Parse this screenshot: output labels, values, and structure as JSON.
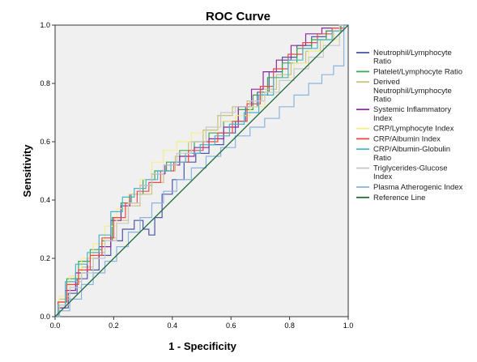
{
  "chart_data": {
    "type": "line",
    "title": "ROC Curve",
    "xlabel": "1 - Specificity",
    "ylabel": "Sensitivity",
    "xlim": [
      0.0,
      1.0
    ],
    "ylim": [
      0.0,
      1.0
    ],
    "x_ticks": [
      "0.0",
      "0.2",
      "0.4",
      "0.6",
      "0.8",
      "1.0"
    ],
    "y_ticks": [
      "0.0",
      "0.2",
      "0.4",
      "0.6",
      "0.8",
      "1.0"
    ],
    "grid": false,
    "background_color": "#f0f0f0",
    "legend_position": "right",
    "series": [
      {
        "name": "Neutrophil/Lymphocyte Ratio",
        "color": "#4a57a8",
        "points": [
          [
            0,
            0
          ],
          [
            0.03,
            0.03
          ],
          [
            0.06,
            0.08
          ],
          [
            0.09,
            0.13
          ],
          [
            0.13,
            0.16
          ],
          [
            0.17,
            0.21
          ],
          [
            0.21,
            0.26
          ],
          [
            0.25,
            0.3
          ],
          [
            0.29,
            0.33
          ],
          [
            0.31,
            0.3
          ],
          [
            0.33,
            0.28
          ],
          [
            0.35,
            0.34
          ],
          [
            0.38,
            0.42
          ],
          [
            0.42,
            0.47
          ],
          [
            0.46,
            0.53
          ],
          [
            0.5,
            0.56
          ],
          [
            0.55,
            0.59
          ],
          [
            0.6,
            0.63
          ],
          [
            0.63,
            0.67
          ],
          [
            0.67,
            0.72
          ],
          [
            0.71,
            0.77
          ],
          [
            0.75,
            0.84
          ],
          [
            0.8,
            0.89
          ],
          [
            0.85,
            0.93
          ],
          [
            0.9,
            0.96
          ],
          [
            0.95,
            0.98
          ],
          [
            1,
            1
          ]
        ]
      },
      {
        "name": "Platelet/Lymphocyte Ratio",
        "color": "#3aa84a",
        "points": [
          [
            0,
            0
          ],
          [
            0.02,
            0.05
          ],
          [
            0.06,
            0.13
          ],
          [
            0.1,
            0.19
          ],
          [
            0.14,
            0.23
          ],
          [
            0.18,
            0.26
          ],
          [
            0.21,
            0.34
          ],
          [
            0.24,
            0.39
          ],
          [
            0.28,
            0.42
          ],
          [
            0.32,
            0.47
          ],
          [
            0.36,
            0.5
          ],
          [
            0.4,
            0.53
          ],
          [
            0.45,
            0.57
          ],
          [
            0.5,
            0.6
          ],
          [
            0.55,
            0.63
          ],
          [
            0.6,
            0.67
          ],
          [
            0.65,
            0.71
          ],
          [
            0.7,
            0.76
          ],
          [
            0.75,
            0.82
          ],
          [
            0.8,
            0.87
          ],
          [
            0.85,
            0.92
          ],
          [
            0.9,
            0.95
          ],
          [
            0.95,
            0.98
          ],
          [
            1,
            1
          ]
        ]
      },
      {
        "name": "Derived Neutrophil/Lymphocyte Ratio",
        "color": "#c9c17a",
        "points": [
          [
            0,
            0
          ],
          [
            0.03,
            0.06
          ],
          [
            0.07,
            0.12
          ],
          [
            0.11,
            0.17
          ],
          [
            0.15,
            0.22
          ],
          [
            0.19,
            0.27
          ],
          [
            0.23,
            0.33
          ],
          [
            0.27,
            0.38
          ],
          [
            0.31,
            0.42
          ],
          [
            0.35,
            0.46
          ],
          [
            0.39,
            0.5
          ],
          [
            0.43,
            0.55
          ],
          [
            0.48,
            0.6
          ],
          [
            0.53,
            0.64
          ],
          [
            0.58,
            0.69
          ],
          [
            0.63,
            0.72
          ],
          [
            0.68,
            0.74
          ],
          [
            0.73,
            0.78
          ],
          [
            0.78,
            0.83
          ],
          [
            0.83,
            0.87
          ],
          [
            0.88,
            0.91
          ],
          [
            0.93,
            0.95
          ],
          [
            0.97,
            0.98
          ],
          [
            1,
            1
          ]
        ]
      },
      {
        "name": "Systemic Inflammatory Index",
        "color": "#8a2a9a",
        "points": [
          [
            0,
            0
          ],
          [
            0.02,
            0.03
          ],
          [
            0.05,
            0.09
          ],
          [
            0.09,
            0.15
          ],
          [
            0.13,
            0.2
          ],
          [
            0.17,
            0.24
          ],
          [
            0.21,
            0.33
          ],
          [
            0.24,
            0.38
          ],
          [
            0.27,
            0.42
          ],
          [
            0.31,
            0.45
          ],
          [
            0.35,
            0.49
          ],
          [
            0.4,
            0.52
          ],
          [
            0.45,
            0.55
          ],
          [
            0.5,
            0.58
          ],
          [
            0.55,
            0.61
          ],
          [
            0.6,
            0.65
          ],
          [
            0.65,
            0.72
          ],
          [
            0.69,
            0.78
          ],
          [
            0.73,
            0.84
          ],
          [
            0.78,
            0.88
          ],
          [
            0.83,
            0.93
          ],
          [
            0.88,
            0.97
          ],
          [
            0.94,
            0.99
          ],
          [
            1,
            1
          ]
        ]
      },
      {
        "name": "CRP/Lymphocyte Index",
        "color": "#f2ee8a",
        "points": [
          [
            0,
            0
          ],
          [
            0.03,
            0.07
          ],
          [
            0.07,
            0.14
          ],
          [
            0.11,
            0.2
          ],
          [
            0.15,
            0.25
          ],
          [
            0.19,
            0.31
          ],
          [
            0.23,
            0.37
          ],
          [
            0.27,
            0.42
          ],
          [
            0.31,
            0.47
          ],
          [
            0.35,
            0.53
          ],
          [
            0.39,
            0.57
          ],
          [
            0.44,
            0.6
          ],
          [
            0.49,
            0.63
          ],
          [
            0.54,
            0.65
          ],
          [
            0.59,
            0.67
          ],
          [
            0.64,
            0.69
          ],
          [
            0.69,
            0.72
          ],
          [
            0.74,
            0.77
          ],
          [
            0.79,
            0.82
          ],
          [
            0.84,
            0.87
          ],
          [
            0.89,
            0.91
          ],
          [
            0.94,
            0.95
          ],
          [
            1,
            1
          ]
        ]
      },
      {
        "name": "CRP/Albumin Index",
        "color": "#e84a4a",
        "points": [
          [
            0,
            0
          ],
          [
            0.02,
            0.05
          ],
          [
            0.06,
            0.11
          ],
          [
            0.1,
            0.16
          ],
          [
            0.14,
            0.21
          ],
          [
            0.18,
            0.27
          ],
          [
            0.22,
            0.34
          ],
          [
            0.26,
            0.39
          ],
          [
            0.3,
            0.43
          ],
          [
            0.34,
            0.46
          ],
          [
            0.38,
            0.5
          ],
          [
            0.43,
            0.53
          ],
          [
            0.48,
            0.57
          ],
          [
            0.53,
            0.6
          ],
          [
            0.58,
            0.63
          ],
          [
            0.63,
            0.67
          ],
          [
            0.68,
            0.73
          ],
          [
            0.72,
            0.79
          ],
          [
            0.77,
            0.85
          ],
          [
            0.82,
            0.9
          ],
          [
            0.87,
            0.94
          ],
          [
            0.92,
            0.97
          ],
          [
            0.97,
            0.99
          ],
          [
            1,
            1
          ]
        ]
      },
      {
        "name": "CRP/Albumin-Globulin Ratio",
        "color": "#4ab4c8",
        "points": [
          [
            0,
            0
          ],
          [
            0.02,
            0.04
          ],
          [
            0.05,
            0.12
          ],
          [
            0.09,
            0.18
          ],
          [
            0.13,
            0.22
          ],
          [
            0.17,
            0.28
          ],
          [
            0.21,
            0.36
          ],
          [
            0.25,
            0.41
          ],
          [
            0.29,
            0.44
          ],
          [
            0.33,
            0.47
          ],
          [
            0.37,
            0.5
          ],
          [
            0.42,
            0.53
          ],
          [
            0.47,
            0.56
          ],
          [
            0.52,
            0.59
          ],
          [
            0.57,
            0.62
          ],
          [
            0.62,
            0.66
          ],
          [
            0.67,
            0.7
          ],
          [
            0.72,
            0.76
          ],
          [
            0.77,
            0.82
          ],
          [
            0.82,
            0.88
          ],
          [
            0.87,
            0.92
          ],
          [
            0.92,
            0.95
          ],
          [
            0.97,
            0.98
          ],
          [
            1,
            1
          ]
        ]
      },
      {
        "name": "Triglycerides-Glucose Index",
        "color": "#c8c8c8",
        "points": [
          [
            0,
            0
          ],
          [
            0.03,
            0.04
          ],
          [
            0.07,
            0.1
          ],
          [
            0.11,
            0.15
          ],
          [
            0.15,
            0.2
          ],
          [
            0.19,
            0.26
          ],
          [
            0.23,
            0.32
          ],
          [
            0.27,
            0.39
          ],
          [
            0.31,
            0.45
          ],
          [
            0.35,
            0.49
          ],
          [
            0.39,
            0.52
          ],
          [
            0.44,
            0.56
          ],
          [
            0.49,
            0.6
          ],
          [
            0.54,
            0.65
          ],
          [
            0.59,
            0.7
          ],
          [
            0.64,
            0.72
          ],
          [
            0.69,
            0.74
          ],
          [
            0.74,
            0.77
          ],
          [
            0.79,
            0.81
          ],
          [
            0.84,
            0.85
          ],
          [
            0.89,
            0.89
          ],
          [
            0.94,
            0.93
          ],
          [
            1,
            1
          ]
        ]
      },
      {
        "name": "Plasma Atherogenic Index",
        "color": "#8ab4e0",
        "points": [
          [
            0,
            0
          ],
          [
            0.03,
            0.02
          ],
          [
            0.07,
            0.06
          ],
          [
            0.11,
            0.11
          ],
          [
            0.15,
            0.15
          ],
          [
            0.19,
            0.19
          ],
          [
            0.23,
            0.24
          ],
          [
            0.27,
            0.29
          ],
          [
            0.31,
            0.34
          ],
          [
            0.35,
            0.39
          ],
          [
            0.39,
            0.43
          ],
          [
            0.44,
            0.47
          ],
          [
            0.49,
            0.51
          ],
          [
            0.54,
            0.55
          ],
          [
            0.59,
            0.58
          ],
          [
            0.64,
            0.62
          ],
          [
            0.69,
            0.65
          ],
          [
            0.74,
            0.68
          ],
          [
            0.79,
            0.72
          ],
          [
            0.84,
            0.76
          ],
          [
            0.89,
            0.8
          ],
          [
            0.93,
            0.83
          ],
          [
            0.97,
            0.86
          ],
          [
            1,
            1
          ]
        ]
      },
      {
        "name": "Reference Line",
        "color": "#1e6b3a",
        "points": [
          [
            0,
            0
          ],
          [
            1,
            1
          ]
        ]
      }
    ],
    "legend_entries": [
      {
        "lines": [
          "Neutrophil/Lymphocyte",
          "Ratio"
        ],
        "color": "#4a57a8"
      },
      {
        "lines": [
          "Platelet/Lymphocyte Ratio"
        ],
        "color": "#3aa84a"
      },
      {
        "lines": [
          "Derived",
          "Neutrophil/Lymphocyte",
          "Ratio"
        ],
        "color": "#c9c17a"
      },
      {
        "lines": [
          "Systemic Inflammatory",
          "Index"
        ],
        "color": "#8a2a9a"
      },
      {
        "lines": [
          "CRP/Lymphocyte Index"
        ],
        "color": "#f2ee8a"
      },
      {
        "lines": [
          "CRP/Albumin Index"
        ],
        "color": "#e84a4a"
      },
      {
        "lines": [
          "CRP/Albumin-Globulin",
          "Ratio"
        ],
        "color": "#4ab4c8"
      },
      {
        "lines": [
          "Triglycerides-Glucose",
          "Index"
        ],
        "color": "#c8c8c8"
      },
      {
        "lines": [
          "Plasma Atherogenic Index"
        ],
        "color": "#8ab4e0"
      },
      {
        "lines": [
          "Reference Line"
        ],
        "color": "#1e6b3a"
      }
    ]
  }
}
